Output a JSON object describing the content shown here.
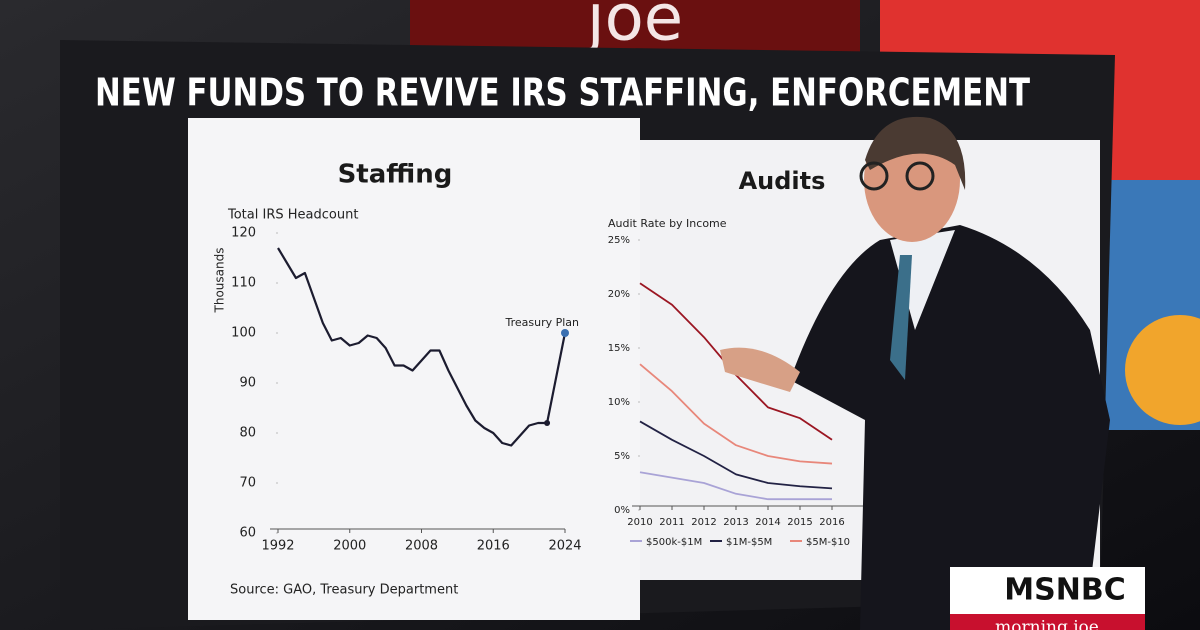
{
  "headline": "NEW FUNDS TO REVIVE IRS STAFFING, ENFORCEMENT",
  "backdrop_logo": "joe",
  "source": "Source: GAO, Treasury Department",
  "network": {
    "logo": "MSNBC",
    "show": "morning joe"
  },
  "chart_data": [
    {
      "type": "line",
      "title": "Staffing",
      "subtitle": "Total IRS Headcount",
      "y_label": "Thousands",
      "annotation": "Treasury Plan",
      "x": [
        1992,
        1993,
        1994,
        1995,
        1996,
        1997,
        1998,
        1999,
        2000,
        2001,
        2002,
        2003,
        2004,
        2005,
        2006,
        2007,
        2008,
        2009,
        2010,
        2011,
        2012,
        2013,
        2014,
        2015,
        2016,
        2017,
        2018,
        2019,
        2020,
        2021,
        2022,
        2024
      ],
      "series": [
        {
          "color": "#1c1c30",
          "values": [
            117,
            114,
            111,
            112,
            107,
            102,
            98.5,
            99,
            97.5,
            98,
            99.5,
            99,
            97,
            93.5,
            93.5,
            92.5,
            94.5,
            96.5,
            96.5,
            92.5,
            89,
            85.5,
            82.5,
            81,
            80,
            78,
            77.5,
            79.5,
            81.5,
            82,
            82,
            100
          ]
        }
      ],
      "highlight_points": [
        30,
        31
      ],
      "xlim": [
        1992,
        2024
      ],
      "ylim": [
        60,
        120
      ],
      "xticks": [
        1992,
        2000,
        2008,
        2016,
        2024
      ],
      "yticks": [
        60,
        70,
        80,
        90,
        100,
        110,
        120
      ]
    },
    {
      "type": "line",
      "title": "Audits",
      "subtitle": "Audit Rate by Income",
      "x": [
        2010,
        2011,
        2012,
        2013,
        2014,
        2015,
        2016
      ],
      "series": [
        {
          "name": "$500k-$1M",
          "color": "#a9a3d6",
          "values": [
            3.5,
            3,
            2.5,
            1.5,
            1,
            1,
            1
          ]
        },
        {
          "name": "$1M-$5M",
          "color": "#222244",
          "values": [
            8.2,
            6.5,
            5,
            3.3,
            2.5,
            2.2,
            2
          ]
        },
        {
          "name": "$5M-$10",
          "color": "#e8877a",
          "values": [
            13.5,
            11,
            8,
            6,
            5,
            4.5,
            4.3
          ]
        },
        {
          "color": "#9b1622",
          "values": [
            21,
            19,
            16,
            12.5,
            9.5,
            8.5,
            6.5
          ]
        }
      ],
      "xlim": [
        2010,
        2017
      ],
      "ylim": [
        0,
        25
      ],
      "xticks": [
        2010,
        2011,
        2012,
        2013,
        2014,
        2015,
        2016
      ],
      "yticks": [
        {
          "value": 0,
          "label": "0%"
        },
        {
          "value": 5,
          "label": "5%"
        },
        {
          "value": 10,
          "label": "10%"
        },
        {
          "value": 15,
          "label": "15%"
        },
        {
          "value": 20,
          "label": "20%"
        },
        {
          "value": 25,
          "label": "25%"
        }
      ],
      "legend": "bottom"
    }
  ]
}
